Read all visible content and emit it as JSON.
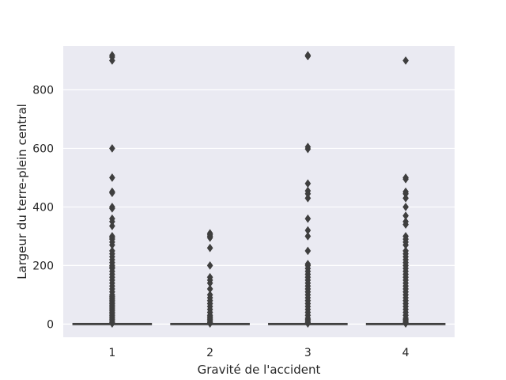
{
  "chart_data": {
    "type": "box",
    "xlabel": "Gravité de l'accident",
    "ylabel": "Largeur du terre-plein central",
    "categories": [
      "1",
      "2",
      "3",
      "4"
    ],
    "ylim": [
      -45,
      950
    ],
    "yticks": [
      0,
      200,
      400,
      600,
      800
    ],
    "grid": true,
    "colors": {
      "plot_bg": "#eaeaf2",
      "grid": "#ffffff",
      "box_line": "#404040",
      "marker": "#3f3f3f"
    },
    "series": [
      {
        "category": "1",
        "median": 0,
        "q1": 0,
        "q3": 0,
        "whisker_low": 0,
        "whisker_high": 0,
        "outliers": [
          918,
          912,
          900,
          600,
          500,
          452,
          448,
          400,
          395,
          360,
          350,
          335,
          300,
          295,
          290,
          280,
          270,
          250,
          240,
          230,
          220,
          210,
          200,
          195,
          190,
          180,
          170,
          160,
          150,
          140,
          130,
          120,
          110,
          100,
          95,
          90,
          85,
          80,
          75,
          70,
          65,
          60,
          55,
          50,
          45,
          40,
          35,
          30,
          25,
          20,
          15,
          10,
          5,
          2
        ]
      },
      {
        "category": "2",
        "median": 0,
        "q1": 0,
        "q3": 0,
        "whisker_low": 0,
        "whisker_high": 0,
        "outliers": [
          310,
          305,
          300,
          295,
          260,
          200,
          160,
          150,
          140,
          120,
          100,
          90,
          80,
          70,
          60,
          50,
          40,
          30,
          25,
          20,
          15,
          10,
          5,
          2
        ]
      },
      {
        "category": "3",
        "median": 0,
        "q1": 0,
        "q3": 0,
        "whisker_low": 0,
        "whisker_high": 0,
        "outliers": [
          918,
          915,
          605,
          598,
          480,
          455,
          445,
          430,
          360,
          320,
          300,
          250,
          205,
          200,
          190,
          180,
          170,
          160,
          150,
          140,
          130,
          120,
          110,
          100,
          90,
          80,
          70,
          60,
          50,
          40,
          30,
          20,
          15,
          10,
          5,
          2
        ]
      },
      {
        "category": "4",
        "median": 0,
        "q1": 0,
        "q3": 0,
        "whisker_low": 0,
        "whisker_high": 0,
        "outliers": [
          900,
          500,
          495,
          452,
          445,
          430,
          400,
          370,
          350,
          340,
          300,
          290,
          280,
          270,
          250,
          240,
          230,
          220,
          210,
          200,
          190,
          180,
          170,
          160,
          150,
          140,
          130,
          120,
          110,
          100,
          90,
          80,
          70,
          60,
          50,
          40,
          30,
          20,
          15,
          10,
          5,
          2
        ]
      }
    ]
  }
}
